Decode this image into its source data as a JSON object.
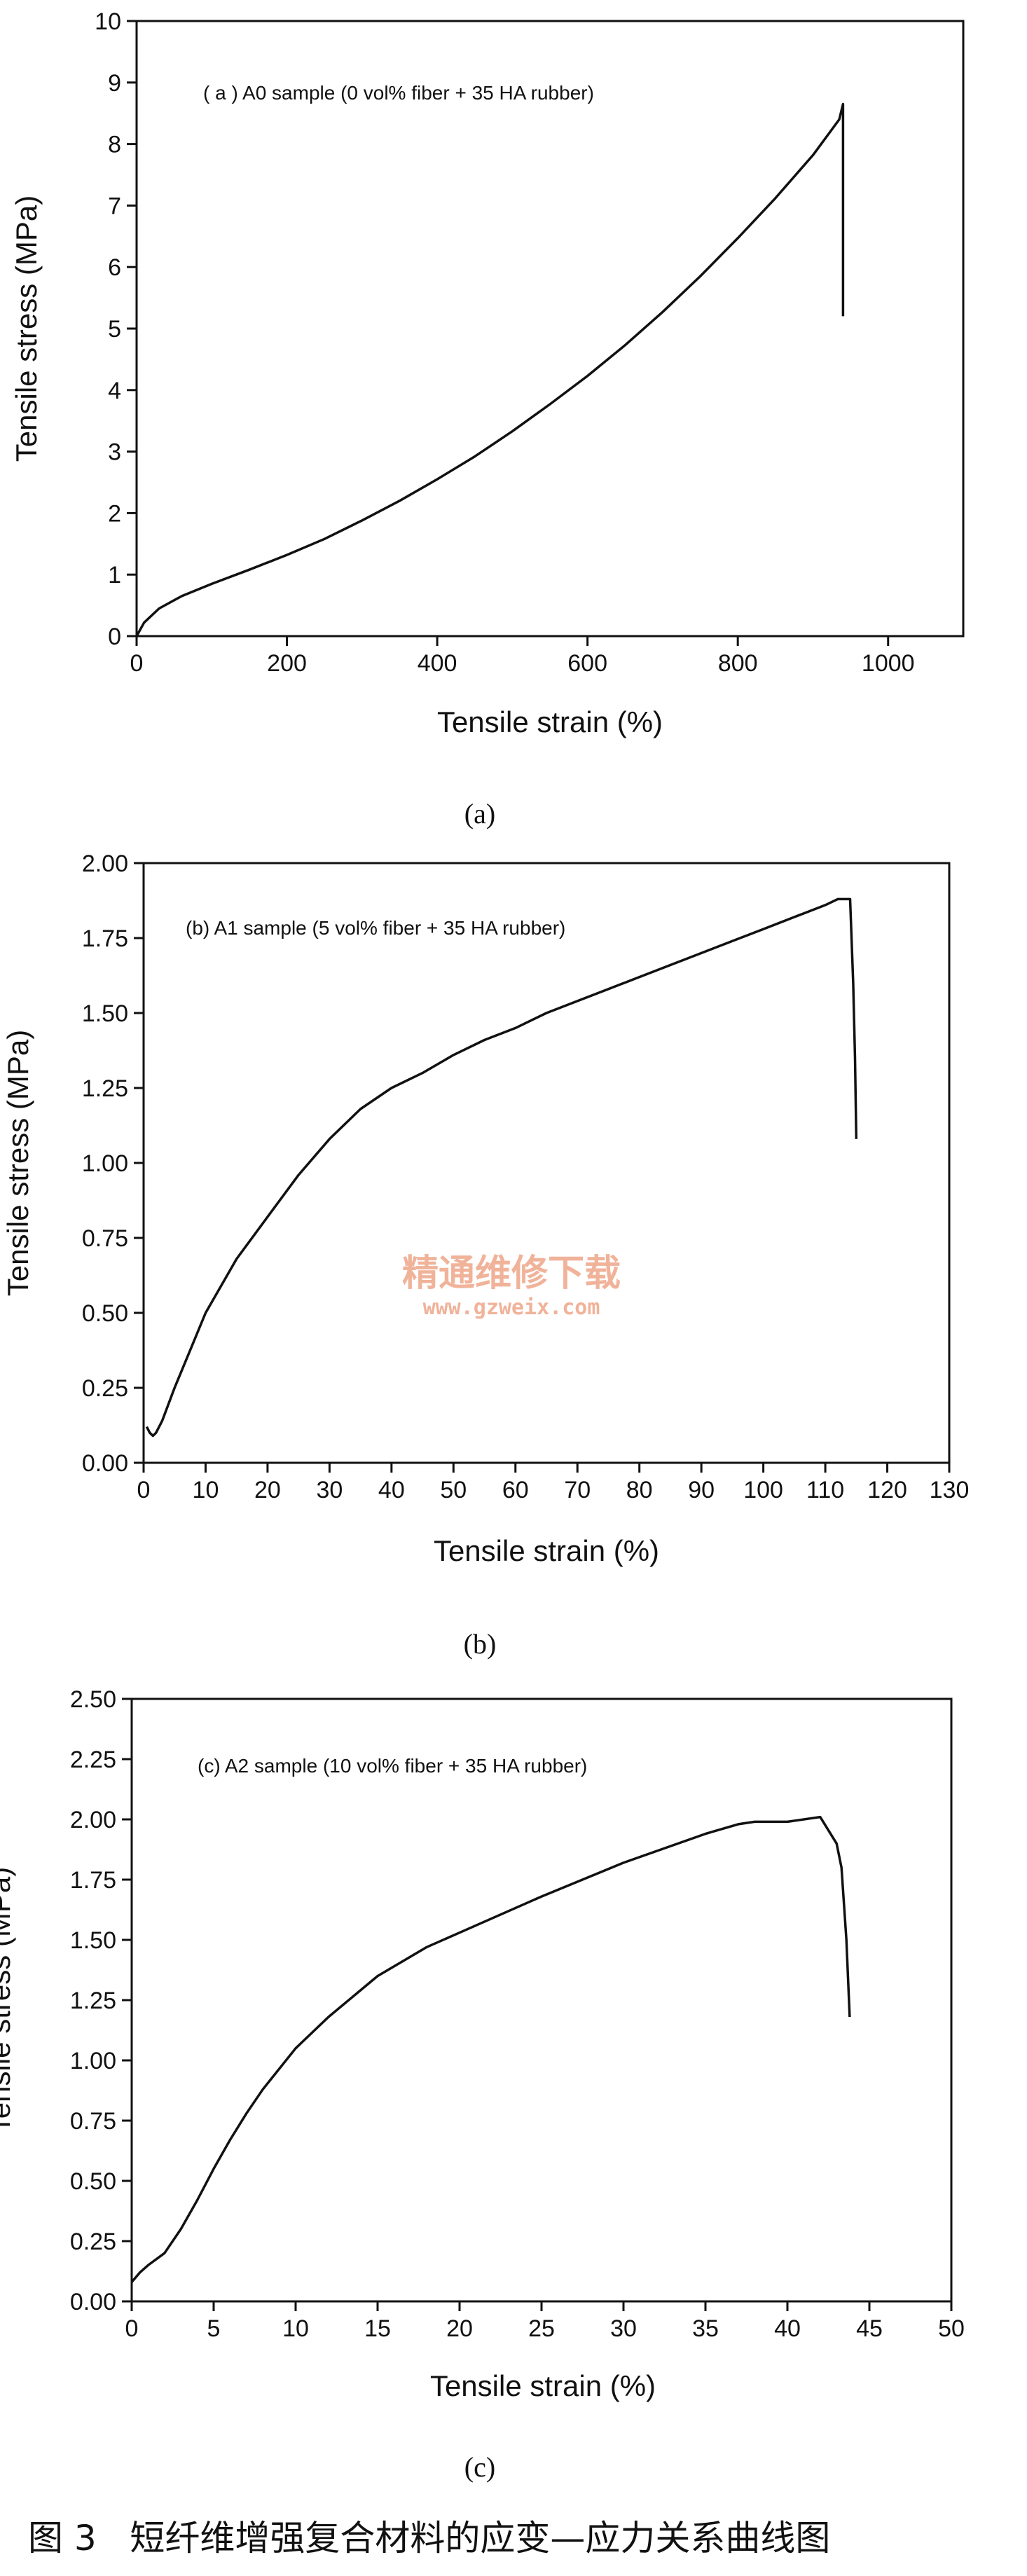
{
  "figure": {
    "caption": "图 3   短纤维增强复合材料的应变—应力关系曲线图",
    "watermark": {
      "line1": "精通维修下载",
      "line2": "www.gzweix.com"
    }
  },
  "chart_data": [
    {
      "type": "line",
      "sublabel": "(a)",
      "annotation": "( a ) A0 sample (0 vol% fiber + 35 HA rubber)",
      "xlabel": "Tensile strain (%)",
      "ylabel": "Tensile stress (MPa)",
      "xlim": [
        0,
        1100
      ],
      "ylim": [
        0,
        10
      ],
      "xticks": [
        0,
        200,
        400,
        600,
        800,
        1000
      ],
      "yticks": [
        0,
        1,
        2,
        3,
        4,
        5,
        6,
        7,
        8,
        9,
        10
      ],
      "xtick_labels": [
        "0",
        "200",
        "400",
        "600",
        "800",
        "1000"
      ],
      "ytick_labels": [
        "0",
        "1",
        "2",
        "3",
        "4",
        "5",
        "6",
        "7",
        "8",
        "9",
        "10"
      ],
      "grid": false,
      "series": [
        {
          "x": [
            0,
            10,
            30,
            60,
            100,
            150,
            200,
            250,
            300,
            350,
            400,
            450,
            500,
            550,
            600,
            650,
            700,
            750,
            800,
            850,
            900,
            935,
            940,
            940
          ],
          "y": [
            0,
            0.22,
            0.45,
            0.65,
            0.85,
            1.08,
            1.32,
            1.58,
            1.88,
            2.2,
            2.55,
            2.92,
            3.33,
            3.77,
            4.23,
            4.73,
            5.27,
            5.85,
            6.47,
            7.12,
            7.82,
            8.4,
            8.65,
            5.2
          ]
        }
      ]
    },
    {
      "type": "line",
      "sublabel": "(b)",
      "annotation": "(b) A1 sample (5 vol% fiber + 35 HA rubber)",
      "xlabel": "Tensile strain (%)",
      "ylabel": "Tensile stress (MPa)",
      "xlim": [
        0,
        130
      ],
      "ylim": [
        0,
        2
      ],
      "xticks": [
        0,
        10,
        20,
        30,
        40,
        50,
        60,
        70,
        80,
        90,
        100,
        110,
        120,
        130
      ],
      "yticks": [
        0,
        0.25,
        0.5,
        0.75,
        1,
        1.25,
        1.5,
        1.75,
        2
      ],
      "xtick_labels": [
        "0",
        "10",
        "20",
        "30",
        "40",
        "50",
        "60",
        "70",
        "80",
        "90",
        "100",
        "110",
        "120",
        "130"
      ],
      "ytick_labels": [
        "0.00",
        "0.25",
        "0.50",
        "0.75",
        "1.00",
        "1.25",
        "1.50",
        "1.75",
        "2.00"
      ],
      "grid": false,
      "series": [
        {
          "x": [
            0.5,
            1,
            1.5,
            2,
            3,
            5,
            8,
            10,
            15,
            20,
            25,
            30,
            35,
            40,
            45,
            50,
            55,
            60,
            65,
            70,
            75,
            80,
            85,
            90,
            95,
            100,
            105,
            110,
            112,
            114,
            114.5,
            114.8,
            115
          ],
          "y": [
            0.12,
            0.1,
            0.09,
            0.1,
            0.14,
            0.25,
            0.4,
            0.5,
            0.68,
            0.82,
            0.96,
            1.08,
            1.18,
            1.25,
            1.3,
            1.36,
            1.41,
            1.45,
            1.5,
            1.54,
            1.58,
            1.62,
            1.66,
            1.7,
            1.74,
            1.78,
            1.82,
            1.86,
            1.88,
            1.88,
            1.6,
            1.35,
            1.08
          ]
        }
      ]
    },
    {
      "type": "line",
      "sublabel": "(c)",
      "annotation": "(c) A2 sample (10 vol% fiber + 35 HA rubber)",
      "xlabel": "Tensile strain (%)",
      "ylabel": "Tensile stress (MPa)",
      "xlim": [
        0,
        50
      ],
      "ylim": [
        0,
        2.5
      ],
      "xticks": [
        0,
        5,
        10,
        15,
        20,
        25,
        30,
        35,
        40,
        45,
        50
      ],
      "yticks": [
        0,
        0.25,
        0.5,
        0.75,
        1,
        1.25,
        1.5,
        1.75,
        2,
        2.25,
        2.5
      ],
      "xtick_labels": [
        "0",
        "5",
        "10",
        "15",
        "20",
        "25",
        "30",
        "35",
        "40",
        "45",
        "50"
      ],
      "ytick_labels": [
        "0.00",
        "0.25",
        "0.50",
        "0.75",
        "1.00",
        "1.25",
        "1.50",
        "1.75",
        "2.00",
        "2.25",
        "2.50"
      ],
      "grid": false,
      "series": [
        {
          "x": [
            0,
            0.5,
            1,
            2,
            3,
            4,
            5,
            6,
            7,
            8,
            10,
            12,
            15,
            18,
            20,
            25,
            30,
            35,
            37,
            38,
            40,
            42,
            43,
            43.3,
            43.6,
            43.8
          ],
          "y": [
            0.08,
            0.12,
            0.15,
            0.2,
            0.3,
            0.42,
            0.55,
            0.67,
            0.78,
            0.88,
            1.05,
            1.18,
            1.35,
            1.47,
            1.53,
            1.68,
            1.82,
            1.94,
            1.98,
            1.99,
            1.99,
            2.01,
            1.9,
            1.8,
            1.5,
            1.18
          ]
        }
      ]
    }
  ]
}
